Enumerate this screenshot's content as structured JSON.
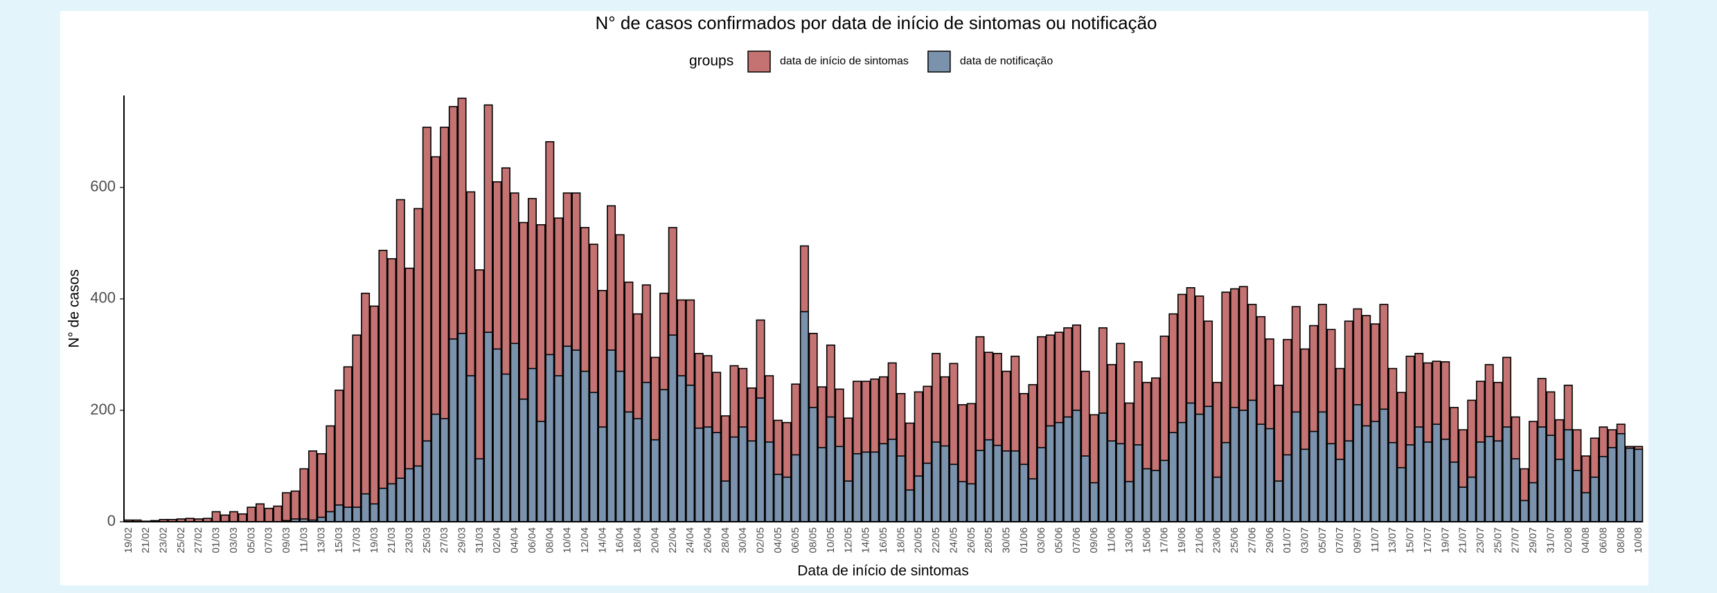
{
  "chart_data": {
    "type": "bar",
    "title": "N° de casos confirmados por data de início de sintomas ou notificação",
    "x_label": "Data de início de sintomas",
    "y_label": "N° de casos",
    "legend_title": "groups",
    "legend_position": "top",
    "ylim": [
      0,
      765
    ],
    "yticks": [
      0,
      200,
      400,
      600
    ],
    "categories": [
      "19/02",
      null,
      "21/02",
      null,
      "23/02",
      null,
      "25/02",
      null,
      "27/02",
      null,
      "01/03",
      null,
      "03/03",
      null,
      "05/03",
      null,
      "07/03",
      null,
      "09/03",
      null,
      "11/03",
      null,
      "13/03",
      null,
      "15/03",
      null,
      "17/03",
      null,
      "19/03",
      null,
      "21/03",
      null,
      "23/03",
      null,
      "25/03",
      null,
      "27/03",
      null,
      "29/03",
      null,
      "31/03",
      null,
      "02/04",
      null,
      "04/04",
      null,
      "06/04",
      null,
      "08/04",
      null,
      "10/04",
      null,
      "12/04",
      null,
      "14/04",
      null,
      "16/04",
      null,
      "18/04",
      null,
      "20/04",
      null,
      "22/04",
      null,
      "24/04",
      null,
      "26/04",
      null,
      "28/04",
      null,
      "30/04",
      null,
      "02/05",
      null,
      "04/05",
      null,
      "06/05",
      null,
      "08/05",
      null,
      "10/05",
      null,
      "12/05",
      null,
      "14/05",
      null,
      "16/05",
      null,
      "18/05",
      null,
      "20/05",
      null,
      "22/05",
      null,
      "24/05",
      null,
      "26/05",
      null,
      "28/05",
      null,
      "30/05",
      null,
      "01/06",
      null,
      "03/06",
      null,
      "05/06",
      null,
      "07/06",
      null,
      "09/06",
      null,
      "11/06",
      null,
      "13/06",
      null,
      "15/06",
      null,
      "17/06",
      null,
      "19/06",
      null,
      "21/06",
      null,
      "23/06",
      null,
      "25/06",
      null,
      "27/06",
      null,
      "29/06",
      null,
      "01/07",
      null,
      "03/07",
      null,
      "05/07",
      null,
      "07/07",
      null,
      "09/07",
      null,
      "11/07",
      null,
      "13/07",
      null,
      "15/07",
      null,
      "17/07",
      null,
      "19/07",
      null,
      "21/07",
      null,
      "23/07",
      null,
      "25/07",
      null,
      "27/07",
      null,
      "29/07",
      null,
      "31/07",
      null,
      "02/08",
      null,
      "04/08",
      null,
      "06/08",
      null,
      "08/08",
      null,
      "10/08"
    ],
    "series": [
      {
        "name": "data de início de sintomas",
        "color": "#c47272",
        "values": [
          3,
          3,
          1,
          2,
          4,
          4,
          5,
          6,
          5,
          6,
          18,
          12,
          18,
          14,
          26,
          32,
          24,
          28,
          52,
          55,
          95,
          127,
          122,
          172,
          236,
          278,
          335,
          410,
          387,
          487,
          472,
          578,
          455,
          562,
          708,
          655,
          708,
          745,
          760,
          592,
          452,
          748,
          610,
          635,
          590,
          537,
          580,
          533,
          682,
          545,
          590,
          590,
          528,
          498,
          415,
          567,
          515,
          430,
          373,
          425,
          295,
          410,
          528,
          398,
          398,
          302,
          298,
          268,
          190,
          280,
          275,
          240,
          362,
          262,
          182,
          178,
          247,
          495,
          338,
          242,
          317,
          238,
          186,
          252,
          252,
          256,
          260,
          285,
          230,
          177,
          233,
          243,
          302,
          260,
          284,
          210,
          212,
          332,
          304,
          302,
          270,
          297,
          230,
          246,
          332,
          335,
          340,
          348,
          353,
          270,
          192,
          348,
          282,
          320,
          213,
          287,
          250,
          258,
          333,
          373,
          408,
          420,
          405,
          360,
          250,
          412,
          418,
          422,
          390,
          368,
          328,
          245,
          327,
          386,
          310,
          352,
          390,
          345,
          275,
          360,
          382,
          370,
          355,
          390,
          275,
          232,
          297,
          302,
          285,
          288,
          287,
          205,
          165,
          218,
          252,
          282,
          250,
          295,
          188,
          95,
          180,
          257,
          233,
          183,
          245,
          165,
          118,
          150,
          170,
          165,
          175,
          135,
          135
        ]
      },
      {
        "name": "data de notificação",
        "color": "#7b92ac",
        "values": [
          0,
          0,
          0,
          0,
          0,
          0,
          0,
          0,
          0,
          0,
          0,
          0,
          0,
          0,
          0,
          0,
          0,
          0,
          2,
          5,
          5,
          3,
          8,
          18,
          30,
          26,
          26,
          50,
          32,
          60,
          68,
          78,
          95,
          100,
          145,
          193,
          185,
          328,
          338,
          262,
          113,
          340,
          310,
          265,
          320,
          220,
          275,
          180,
          300,
          262,
          315,
          308,
          270,
          232,
          170,
          308,
          270,
          197,
          185,
          250,
          147,
          237,
          335,
          262,
          245,
          168,
          170,
          160,
          73,
          152,
          170,
          145,
          222,
          143,
          85,
          80,
          120,
          377,
          205,
          133,
          188,
          135,
          73,
          122,
          125,
          125,
          140,
          148,
          118,
          57,
          82,
          105,
          143,
          136,
          103,
          72,
          68,
          128,
          147,
          137,
          127,
          127,
          103,
          77,
          133,
          172,
          178,
          188,
          200,
          118,
          70,
          195,
          145,
          140,
          72,
          138,
          95,
          92,
          110,
          160,
          178,
          213,
          193,
          207,
          80,
          142,
          205,
          200,
          218,
          175,
          167,
          73,
          120,
          197,
          130,
          162,
          197,
          140,
          112,
          145,
          210,
          172,
          180,
          202,
          142,
          97,
          138,
          170,
          143,
          175,
          148,
          107,
          62,
          80,
          143,
          153,
          145,
          170,
          113,
          38,
          70,
          170,
          155,
          112,
          165,
          92,
          52,
          80,
          117,
          133,
          158,
          132,
          130
        ]
      }
    ]
  }
}
